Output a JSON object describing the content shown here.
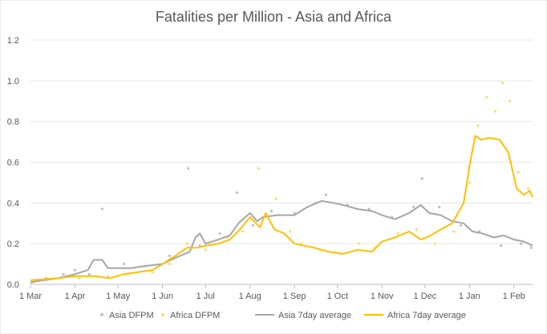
{
  "chart_data": {
    "type": "line",
    "title": "Fatalities per Million - Asia and Africa",
    "xlabel": "",
    "ylabel": "",
    "ylim": [
      0,
      1.2
    ],
    "yticks": [
      "0.0",
      "0.2",
      "0.4",
      "0.6",
      "0.8",
      "1.0",
      "1.2"
    ],
    "xlim": [
      "2020-03-01",
      "2021-02-14"
    ],
    "xticks": [
      {
        "date": "2020-03-01",
        "label": "1 Mar"
      },
      {
        "date": "2020-04-01",
        "label": "1 Apr"
      },
      {
        "date": "2020-05-01",
        "label": "1 May"
      },
      {
        "date": "2020-06-01",
        "label": "1 Jun"
      },
      {
        "date": "2020-07-01",
        "label": "1 Jul"
      },
      {
        "date": "2020-08-01",
        "label": "1 Aug"
      },
      {
        "date": "2020-09-01",
        "label": "1 Sep"
      },
      {
        "date": "2020-10-01",
        "label": "1 Oct"
      },
      {
        "date": "2020-11-01",
        "label": "1 Nov"
      },
      {
        "date": "2020-12-01",
        "label": "1 Dec"
      },
      {
        "date": "2021-01-01",
        "label": "1 Jan"
      },
      {
        "date": "2021-02-01",
        "label": "1 Feb"
      }
    ],
    "grid": "horizontal",
    "legend": "bottom",
    "series": [
      {
        "name": "Asia DFPM",
        "kind": "scatter",
        "color": "#bfbfbf",
        "x": [
          "2020-03-02",
          "2020-03-12",
          "2020-03-24",
          "2020-04-01",
          "2020-04-11",
          "2020-04-20",
          "2020-05-05",
          "2020-05-20",
          "2020-06-06",
          "2020-06-19",
          "2020-06-27",
          "2020-07-11",
          "2020-07-23",
          "2020-08-03",
          "2020-08-16",
          "2020-09-01",
          "2020-09-16",
          "2020-09-23",
          "2020-10-08",
          "2020-10-23",
          "2020-11-08",
          "2020-11-23",
          "2020-11-29",
          "2020-12-11",
          "2020-12-26",
          "2021-01-08",
          "2021-01-23",
          "2021-02-06",
          "2021-02-13"
        ],
        "y": [
          0.01,
          0.03,
          0.05,
          0.07,
          0.05,
          0.37,
          0.1,
          0.09,
          0.14,
          0.57,
          0.19,
          0.25,
          0.45,
          0.29,
          0.36,
          0.35,
          0.4,
          0.44,
          0.39,
          0.37,
          0.33,
          0.38,
          0.52,
          0.38,
          0.29,
          0.26,
          0.19,
          0.2,
          0.18
        ]
      },
      {
        "name": "Africa DFPM",
        "kind": "scatter",
        "color": "#ffd966",
        "x": [
          "2020-03-12",
          "2020-04-04",
          "2020-04-24",
          "2020-05-08",
          "2020-05-25",
          "2020-06-06",
          "2020-06-18",
          "2020-07-01",
          "2020-07-16",
          "2020-07-27",
          "2020-08-07",
          "2020-08-19",
          "2020-08-29",
          "2020-09-06",
          "2020-09-19",
          "2020-10-03",
          "2020-10-16",
          "2020-10-27",
          "2020-11-12",
          "2020-11-25",
          "2020-12-08",
          "2020-12-21",
          "2021-01-01",
          "2021-01-07",
          "2021-01-13",
          "2021-01-19",
          "2021-01-24",
          "2021-01-29",
          "2021-02-04",
          "2021-02-11"
        ],
        "y": [
          0.02,
          0.03,
          0.04,
          0.05,
          0.06,
          0.1,
          0.2,
          0.17,
          0.23,
          0.26,
          0.57,
          0.42,
          0.26,
          0.2,
          0.17,
          0.15,
          0.2,
          0.18,
          0.25,
          0.27,
          0.2,
          0.26,
          0.5,
          0.78,
          0.92,
          0.85,
          0.99,
          0.9,
          0.55,
          0.47
        ]
      },
      {
        "name": "Asia 7day average",
        "kind": "line",
        "color": "#a6a6a6",
        "x": [
          "2020-03-01",
          "2020-03-10",
          "2020-03-20",
          "2020-04-01",
          "2020-04-10",
          "2020-04-14",
          "2020-04-20",
          "2020-04-24",
          "2020-05-01",
          "2020-05-10",
          "2020-05-20",
          "2020-06-01",
          "2020-06-10",
          "2020-06-20",
          "2020-06-24",
          "2020-06-27",
          "2020-07-01",
          "2020-07-10",
          "2020-07-18",
          "2020-07-24",
          "2020-08-01",
          "2020-08-06",
          "2020-08-10",
          "2020-08-20",
          "2020-09-01",
          "2020-09-10",
          "2020-09-20",
          "2020-09-28",
          "2020-10-05",
          "2020-10-15",
          "2020-10-25",
          "2020-11-01",
          "2020-11-10",
          "2020-11-20",
          "2020-11-28",
          "2020-12-04",
          "2020-12-12",
          "2020-12-20",
          "2020-12-28",
          "2021-01-03",
          "2021-01-10",
          "2021-01-18",
          "2021-01-25",
          "2021-02-01",
          "2021-02-08",
          "2021-02-14"
        ],
        "y": [
          0.01,
          0.02,
          0.03,
          0.05,
          0.07,
          0.12,
          0.12,
          0.08,
          0.08,
          0.08,
          0.09,
          0.1,
          0.13,
          0.16,
          0.23,
          0.25,
          0.2,
          0.22,
          0.24,
          0.3,
          0.35,
          0.31,
          0.33,
          0.34,
          0.34,
          0.38,
          0.41,
          0.4,
          0.39,
          0.37,
          0.36,
          0.34,
          0.32,
          0.35,
          0.39,
          0.35,
          0.34,
          0.31,
          0.3,
          0.26,
          0.25,
          0.23,
          0.24,
          0.22,
          0.21,
          0.19
        ]
      },
      {
        "name": "Africa 7day average",
        "kind": "line",
        "color": "#ffc000",
        "x": [
          "2020-03-01",
          "2020-03-20",
          "2020-04-01",
          "2020-04-15",
          "2020-04-25",
          "2020-05-05",
          "2020-05-15",
          "2020-05-25",
          "2020-06-01",
          "2020-06-10",
          "2020-06-18",
          "2020-06-25",
          "2020-07-01",
          "2020-07-10",
          "2020-07-18",
          "2020-07-25",
          "2020-08-01",
          "2020-08-08",
          "2020-08-12",
          "2020-08-18",
          "2020-08-25",
          "2020-09-01",
          "2020-09-08",
          "2020-09-15",
          "2020-09-25",
          "2020-10-05",
          "2020-10-15",
          "2020-10-25",
          "2020-11-01",
          "2020-11-10",
          "2020-11-20",
          "2020-11-28",
          "2020-12-05",
          "2020-12-12",
          "2020-12-20",
          "2020-12-28",
          "2021-01-01",
          "2021-01-05",
          "2021-01-09",
          "2021-01-15",
          "2021-01-22",
          "2021-01-28",
          "2021-02-03",
          "2021-02-08",
          "2021-02-12",
          "2021-02-14"
        ],
        "y": [
          0.02,
          0.03,
          0.04,
          0.04,
          0.03,
          0.05,
          0.06,
          0.07,
          0.1,
          0.14,
          0.18,
          0.18,
          0.19,
          0.2,
          0.22,
          0.27,
          0.33,
          0.28,
          0.35,
          0.27,
          0.25,
          0.2,
          0.19,
          0.18,
          0.16,
          0.15,
          0.17,
          0.16,
          0.21,
          0.23,
          0.26,
          0.22,
          0.24,
          0.27,
          0.3,
          0.4,
          0.58,
          0.73,
          0.71,
          0.72,
          0.71,
          0.65,
          0.47,
          0.44,
          0.46,
          0.43
        ]
      }
    ]
  }
}
